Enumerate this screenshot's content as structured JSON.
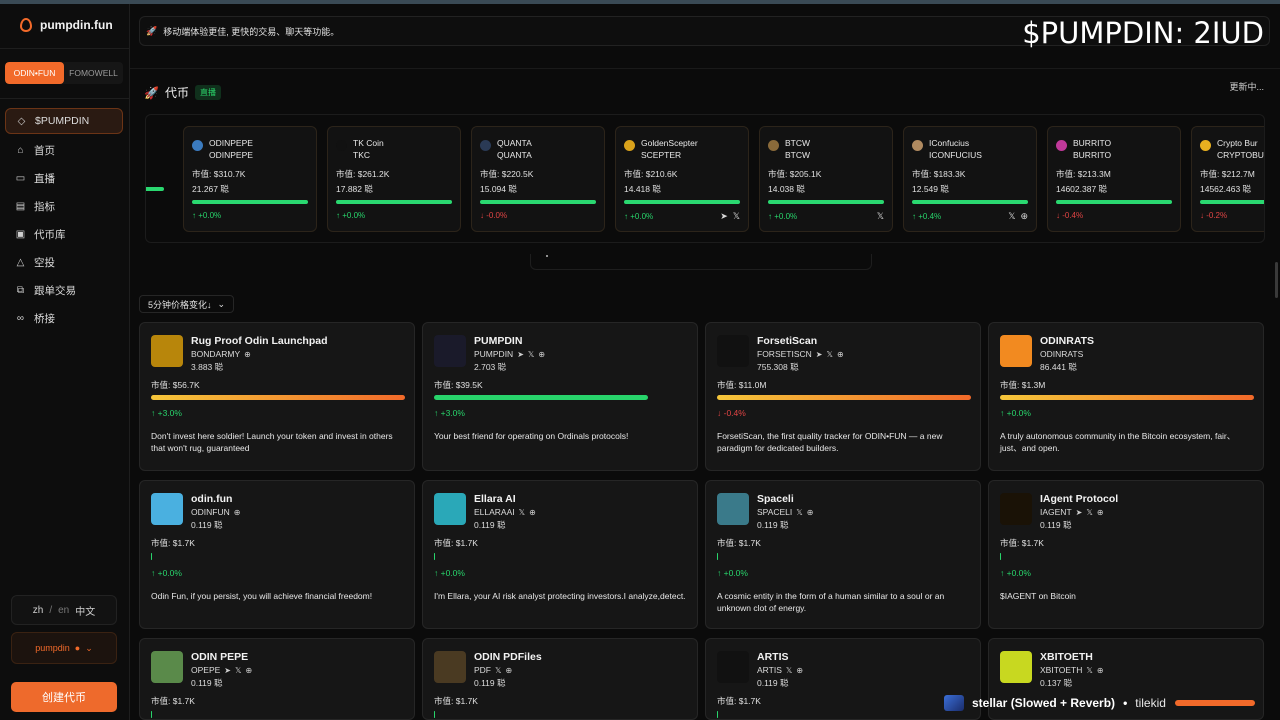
{
  "app": {
    "name": "pumpdin.fun"
  },
  "sidebar": {
    "tabs": [
      "ODIN•FUN",
      "FOMOWELL"
    ],
    "items": [
      {
        "label": "$PUMPDIN",
        "icon": "diamond-icon"
      },
      {
        "label": "首页",
        "icon": "home-icon"
      },
      {
        "label": "直播",
        "icon": "camera-icon"
      },
      {
        "label": "指标",
        "icon": "chart-icon"
      },
      {
        "label": "代币库",
        "icon": "vault-icon"
      },
      {
        "label": "空投",
        "icon": "warning-triangle-icon"
      },
      {
        "label": "跟单交易",
        "icon": "copy-icon"
      },
      {
        "label": "桥接",
        "icon": "link-icon"
      }
    ],
    "lang": {
      "zh": "zh",
      "sep": "/",
      "en": "en",
      "cn": "中文"
    },
    "user": {
      "name": "pumpdin"
    },
    "create_label": "创建代币"
  },
  "banner": {
    "text": "移动端体验更佳, 更快的交易、聊天等功能。"
  },
  "overlay_title": "$PUMPDIN: 2IUD",
  "section": {
    "title": "代币",
    "live_badge": "直播",
    "updating": "更新中..."
  },
  "ticker": [
    {
      "name": "ODINPEPE",
      "ticker": "ODINPEPE",
      "mcap": "市值: $310.7K",
      "holders": "21.267 聪",
      "change": "↑ +0.0%",
      "dir": "up",
      "socials": [],
      "icon_color": "#3b7bbf"
    },
    {
      "name": "TK Coin",
      "ticker": "TKC",
      "mcap": "市值: $261.2K",
      "holders": "17.882 聪",
      "change": "↑ +0.0%",
      "dir": "up",
      "socials": [],
      "icon_color": "#111111"
    },
    {
      "name": "QUANTA",
      "ticker": "QUANTA",
      "mcap": "市值: $220.5K",
      "holders": "15.094 聪",
      "change": "↓ -0.0%",
      "dir": "down",
      "socials": [],
      "icon_color": "#2a3a55"
    },
    {
      "name": "GoldenScepter",
      "ticker": "SCEPTER",
      "mcap": "市值: $210.6K",
      "holders": "14.418 聪",
      "change": "↑ +0.0%",
      "dir": "up",
      "socials": [
        "➤",
        "𝕏"
      ],
      "icon_color": "#d9a21b"
    },
    {
      "name": "BTCW",
      "ticker": "BTCW",
      "mcap": "市值: $205.1K",
      "holders": "14.038 聪",
      "change": "↑ +0.0%",
      "dir": "up",
      "socials": [
        "𝕏"
      ],
      "icon_color": "#8a6a3a"
    },
    {
      "name": "IConfucius",
      "ticker": "ICONFUCIUS",
      "mcap": "市值: $183.3K",
      "holders": "12.549 聪",
      "change": "↑ +0.4%",
      "dir": "up",
      "socials": [
        "𝕏",
        "⊕"
      ],
      "icon_color": "#b08a60"
    },
    {
      "name": "BURRITO",
      "ticker": "BURRITO",
      "mcap": "市值: $213.3M",
      "holders": "14602.387 聪",
      "change": "↓ -0.4%",
      "dir": "down",
      "socials": [],
      "icon_color": "#c0399a"
    },
    {
      "name": "Crypto Bur",
      "ticker": "CRYPTOBU",
      "mcap": "市值: $212.7M",
      "holders": "14562.463 聪",
      "change": "↓ -0.2%",
      "dir": "down",
      "socials": [],
      "icon_color": "#e8b020"
    }
  ],
  "sort": {
    "label": "5分钟价格变化↓"
  },
  "cards": [
    {
      "name": "Rug Proof Odin Launchpad",
      "ticker": "BONDARMY",
      "holders": "3.883 聪",
      "mcap": "市值: $56.7K",
      "bar": "grad",
      "change": "↑ +3.0%",
      "dir": "up",
      "desc": "Don't invest here soldier! Launch your token and invest in others that won't rug, guaranteed",
      "avatar_color": "#b8860b",
      "socials": [
        "⊕"
      ]
    },
    {
      "name": "PUMPDIN",
      "ticker": "PUMPDIN",
      "holders": "2.703 聪",
      "mcap": "市值: $39.5K",
      "bar": "green",
      "change": "↑ +3.0%",
      "dir": "up",
      "desc": "Your best friend for operating on Ordinals protocols!",
      "avatar_color": "#1a1a2a",
      "socials": [
        "➤",
        "𝕏",
        "⊕"
      ]
    },
    {
      "name": "ForsetiScan",
      "ticker": "FORSETISCN",
      "holders": "755.308 聪",
      "mcap": "市值: $11.0M",
      "bar": "grad",
      "change": "↓ -0.4%",
      "dir": "down",
      "desc": "ForsetiScan, the first quality tracker for ODIN•FUN — a new paradigm for dedicated builders.",
      "avatar_color": "#111111",
      "socials": [
        "➤",
        "𝕏",
        "⊕"
      ]
    },
    {
      "name": "ODINRATS",
      "ticker": "ODINRATS",
      "holders": "86.441 聪",
      "mcap": "市值: $1.3M",
      "bar": "grad",
      "change": "↑ +0.0%",
      "dir": "up",
      "desc": "A truly autonomous community in the Bitcoin ecosystem, fair、just、and open.",
      "avatar_color": "#f28a20",
      "socials": []
    },
    {
      "name": "odin.fun",
      "ticker": "ODINFUN",
      "holders": "0.119 聪",
      "mcap": "市值: $1.7K",
      "bar": "thin",
      "change": "↑ +0.0%",
      "dir": "up",
      "desc": "Odin Fun, if you persist, you will achieve financial freedom!",
      "avatar_color": "#4ab0e0",
      "socials": [
        "⊕"
      ]
    },
    {
      "name": "Ellara AI",
      "ticker": "ELLARAAI",
      "holders": "0.119 聪",
      "mcap": "市值: $1.7K",
      "bar": "thin",
      "change": "↑ +0.0%",
      "dir": "up",
      "desc": "I'm Ellara, your AI risk analyst protecting investors.I analyze,detect.",
      "avatar_color": "#2aa8b8",
      "socials": [
        "𝕏",
        "⊕"
      ]
    },
    {
      "name": "Spaceli",
      "ticker": "SPACELI",
      "holders": "0.119 聪",
      "mcap": "市值: $1.7K",
      "bar": "thin",
      "change": "↑ +0.0%",
      "dir": "up",
      "desc": "A cosmic entity in the form of a human similar to a soul or an unknown clot of energy.",
      "avatar_color": "#3a7a8a",
      "socials": [
        "𝕏",
        "⊕"
      ]
    },
    {
      "name": "IAgent Protocol",
      "ticker": "IAGENT",
      "holders": "0.119 聪",
      "mcap": "市值: $1.7K",
      "bar": "thin",
      "change": "↑ +0.0%",
      "dir": "up",
      "desc": "$IAGENT on Bitcoin",
      "avatar_color": "#1a1206",
      "socials": [
        "➤",
        "𝕏",
        "⊕"
      ]
    },
    {
      "name": "ODIN PEPE",
      "ticker": "OPEPE",
      "holders": "0.119 聪",
      "mcap": "市值: $1.7K",
      "bar": "thin",
      "change": "",
      "dir": "up",
      "desc": "",
      "avatar_color": "#5a8a4a",
      "socials": [
        "➤",
        "𝕏",
        "⊕"
      ]
    },
    {
      "name": "ODIN PDFiles",
      "ticker": "PDF",
      "holders": "0.119 聪",
      "mcap": "市值: $1.7K",
      "bar": "thin",
      "change": "",
      "dir": "up",
      "desc": "",
      "avatar_color": "#4a3a22",
      "socials": [
        "𝕏",
        "⊕"
      ]
    },
    {
      "name": "ARTIS",
      "ticker": "ARTIS",
      "holders": "0.119 聪",
      "mcap": "市值: $1.7K",
      "bar": "thin",
      "change": "",
      "dir": "up",
      "desc": "",
      "avatar_color": "#111111",
      "socials": [
        "𝕏",
        "⊕"
      ]
    },
    {
      "name": "XBITOETH",
      "ticker": "XBITOETH",
      "holders": "0.137 聪",
      "mcap": "",
      "bar": "none",
      "change": "",
      "dir": "up",
      "desc": "",
      "avatar_color": "#c8d820",
      "socials": [
        "𝕏",
        "⊕"
      ]
    }
  ],
  "player": {
    "title": "stellar (Slowed + Reverb)",
    "sep": "•",
    "artist": "tilekid"
  }
}
